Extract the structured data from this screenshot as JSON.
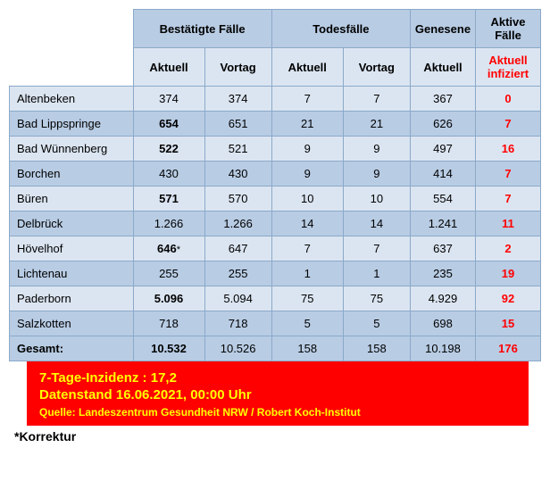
{
  "headers": {
    "confirmed": "Bestätigte Fälle",
    "deaths": "Todesfälle",
    "recovered": "Genesene",
    "active": "Aktive Fälle",
    "current": "Aktuell",
    "previous": "Vortag",
    "active_current": "Aktuell infiziert"
  },
  "rows": [
    {
      "name": "Altenbeken",
      "c1": "374",
      "c1_bold": false,
      "c1_star": false,
      "c2": "374",
      "d1": "7",
      "d2": "7",
      "r": "367",
      "a": "0"
    },
    {
      "name": "Bad Lippspringe",
      "c1": "654",
      "c1_bold": true,
      "c1_star": false,
      "c2": "651",
      "d1": "21",
      "d2": "21",
      "r": "626",
      "a": "7"
    },
    {
      "name": "Bad Wünnenberg",
      "c1": "522",
      "c1_bold": true,
      "c1_star": false,
      "c2": "521",
      "d1": "9",
      "d2": "9",
      "r": "497",
      "a": "16"
    },
    {
      "name": "Borchen",
      "c1": "430",
      "c1_bold": false,
      "c1_star": false,
      "c2": "430",
      "d1": "9",
      "d2": "9",
      "r": "414",
      "a": "7"
    },
    {
      "name": "Büren",
      "c1": "571",
      "c1_bold": true,
      "c1_star": false,
      "c2": "570",
      "d1": "10",
      "d2": "10",
      "r": "554",
      "a": "7"
    },
    {
      "name": "Delbrück",
      "c1": "1.266",
      "c1_bold": false,
      "c1_star": false,
      "c2": "1.266",
      "d1": "14",
      "d2": "14",
      "r": "1.241",
      "a": "11"
    },
    {
      "name": "Hövelhof",
      "c1": "646",
      "c1_bold": true,
      "c1_star": true,
      "c2": "647",
      "d1": "7",
      "d2": "7",
      "r": "637",
      "a": "2"
    },
    {
      "name": "Lichtenau",
      "c1": "255",
      "c1_bold": false,
      "c1_star": false,
      "c2": "255",
      "d1": "1",
      "d2": "1",
      "r": "235",
      "a": "19"
    },
    {
      "name": "Paderborn",
      "c1": "5.096",
      "c1_bold": true,
      "c1_star": false,
      "c2": "5.094",
      "d1": "75",
      "d2": "75",
      "r": "4.929",
      "a": "92"
    },
    {
      "name": "Salzkotten",
      "c1": "718",
      "c1_bold": false,
      "c1_star": false,
      "c2": "718",
      "d1": "5",
      "d2": "5",
      "r": "698",
      "a": "15"
    }
  ],
  "total": {
    "name": "Gesamt:",
    "c1": "10.532",
    "c2": "10.526",
    "d1": "158",
    "d2": "158",
    "r": "10.198",
    "a": "176"
  },
  "info": {
    "incidence": "7-Tage-Inzidenz : 17,2",
    "datestamp": "Datenstand 16.06.2021, 00:00 Uhr",
    "source": "Quelle: Landeszentrum Gesundheit NRW / Robert Koch-Institut"
  },
  "korrektur": "*Korrektur",
  "colors": {
    "header_bg": "#b8cce4",
    "row_light": "#dbe5f1",
    "border": "#8ba9c9",
    "active_red": "#ff0000",
    "info_bg": "#ff0000",
    "info_text": "#ffff00"
  }
}
